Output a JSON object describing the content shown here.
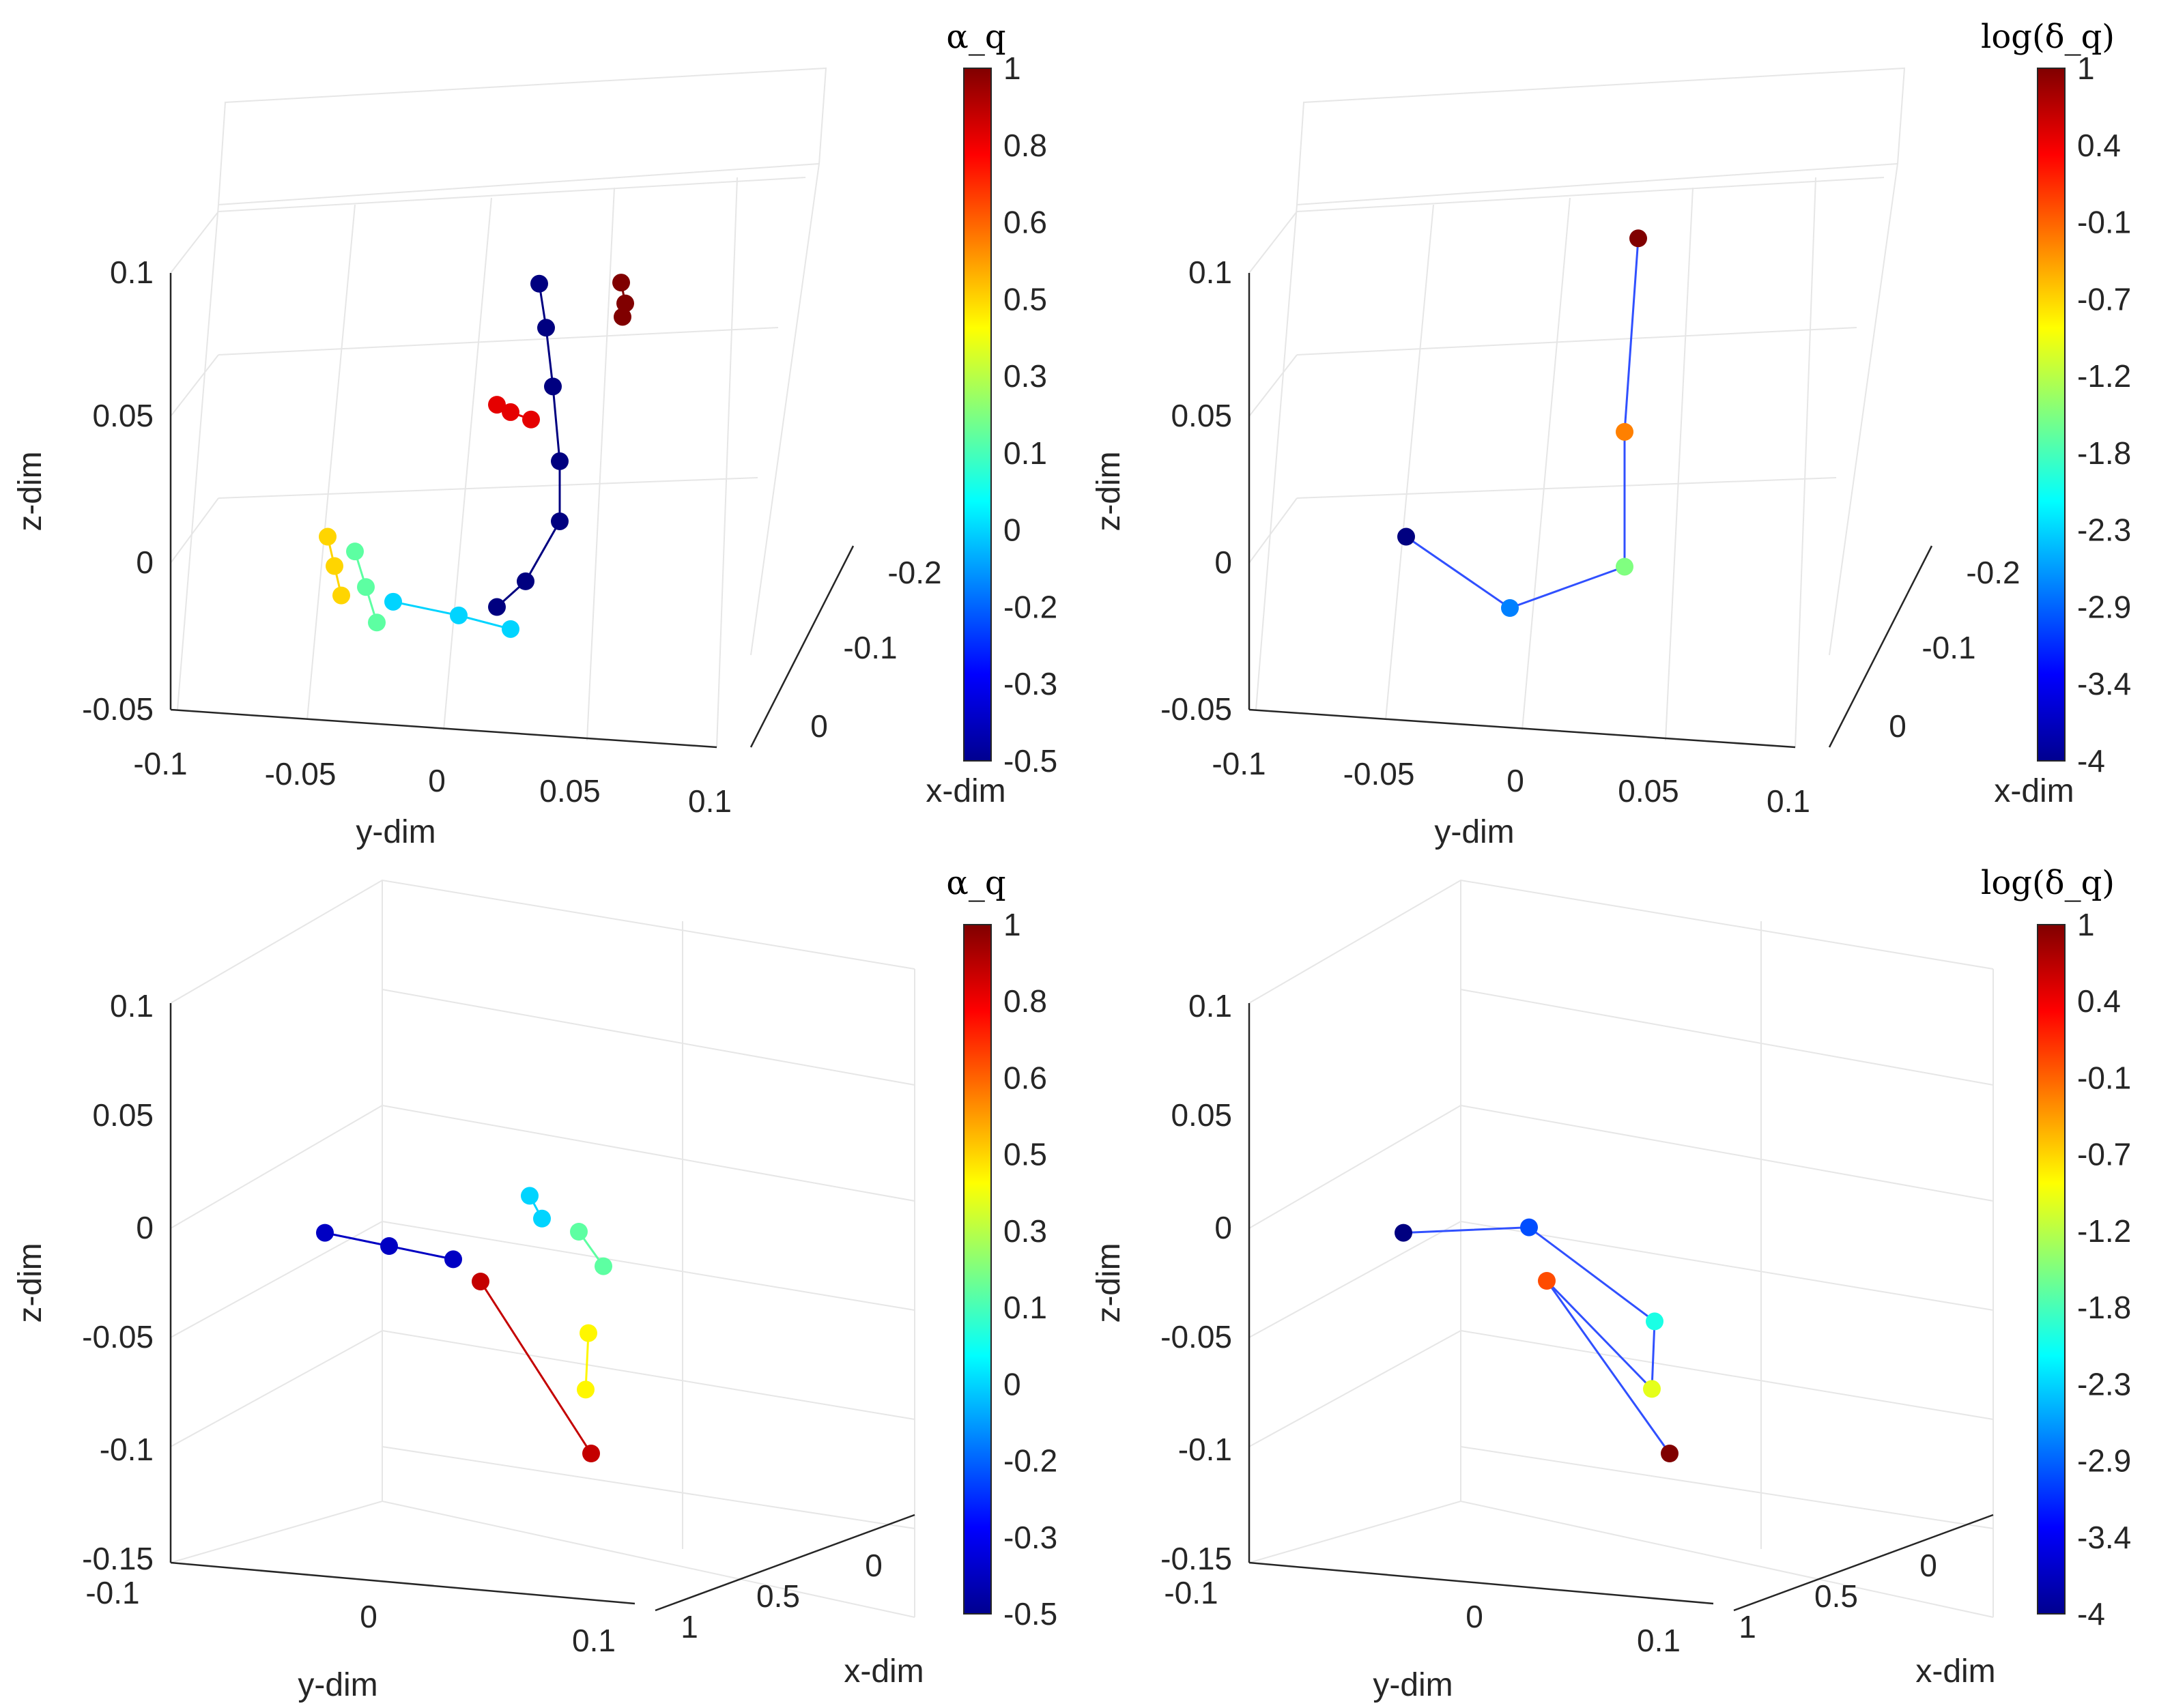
{
  "chart_data": [
    {
      "type": "scatter3d",
      "panel": "top-left",
      "xlabel": "x-dim",
      "ylabel": "y-dim",
      "zlabel": "z-dim",
      "yticks": [
        "-0.1",
        "-0.05",
        "0",
        "0.05",
        "0.1"
      ],
      "xticks": [
        "0",
        "-0.1",
        "-0.2"
      ],
      "zticks": [
        "-0.05",
        "0",
        "0.05",
        "0.1"
      ],
      "colorbar": {
        "title": "α_q",
        "ticks": [
          "1",
          "0.8",
          "0.6",
          "0.5",
          "0.3",
          "0.1",
          "0",
          "-0.2",
          "-0.3",
          "-0.5"
        ]
      },
      "series": [
        {
          "name": "blue-trajectory",
          "color_value": -0.5,
          "points": [
            [
              0.045,
              -0.15,
              0.13
            ],
            [
              0.05,
              -0.15,
              0.1
            ],
            [
              0.055,
              -0.15,
              0.06
            ],
            [
              0.07,
              -0.1,
              0.03
            ],
            [
              0.08,
              -0.05,
              0.01
            ],
            [
              0.065,
              0,
              -0.01
            ],
            [
              0.05,
              0.03,
              -0.015
            ]
          ]
        },
        {
          "name": "dark-red-arc",
          "color_value": 1.0,
          "points": [
            [
              0.095,
              -0.2,
              0.11
            ],
            [
              0.1,
              -0.19,
              0.1
            ],
            [
              0.1,
              -0.18,
              0.095
            ]
          ]
        },
        {
          "name": "red-arc",
          "color_value": 0.85,
          "points": [
            [
              0.02,
              -0.12,
              0.06
            ],
            [
              0.03,
              -0.12,
              0.055
            ],
            [
              0.045,
              -0.12,
              0.05
            ]
          ]
        },
        {
          "name": "cyan-rows",
          "color_value": 0.0,
          "points": [
            [
              -0.03,
              0.01,
              -0.02
            ],
            [
              0.02,
              0.02,
              -0.025
            ],
            [
              0.06,
              0.03,
              -0.03
            ]
          ]
        },
        {
          "name": "green-rows",
          "color_value": 0.2,
          "points": [
            [
              -0.06,
              0.0,
              0.01
            ],
            [
              -0.05,
              0.01,
              -0.01
            ],
            [
              -0.04,
              0.02,
              -0.03
            ]
          ]
        },
        {
          "name": "yellow-rows",
          "color_value": 0.5,
          "points": [
            [
              -0.08,
              0.0,
              0.02
            ],
            [
              -0.075,
              0.0,
              0.0
            ],
            [
              -0.07,
              0.0,
              -0.02
            ]
          ]
        }
      ]
    },
    {
      "type": "scatter3d",
      "panel": "top-right",
      "xlabel": "x-dim",
      "ylabel": "y-dim",
      "zlabel": "z-dim",
      "yticks": [
        "-0.1",
        "-0.05",
        "0",
        "0.05",
        "0.1"
      ],
      "xticks": [
        "0",
        "-0.1",
        "-0.2"
      ],
      "zticks": [
        "-0.05",
        "0",
        "0.05",
        "0.1"
      ],
      "colorbar": {
        "title": "log(δ_q)",
        "ticks": [
          "1",
          "0.4",
          "-0.1",
          "-0.7",
          "-1.2",
          "-1.8",
          "-2.3",
          "-2.9",
          "-3.4",
          "-4"
        ]
      },
      "series": [
        {
          "name": "trajectory-bundle",
          "color_range": [
            -4,
            1
          ],
          "points": [
            [
              -0.08,
              0.0,
              0.02
            ],
            [
              0.0,
              0.02,
              -0.02
            ],
            [
              0.08,
              0.0,
              0.0
            ],
            [
              0.06,
              -0.1,
              0.05
            ],
            [
              0.05,
              -0.2,
              0.14
            ]
          ]
        }
      ]
    },
    {
      "type": "scatter3d",
      "panel": "bottom-left",
      "xlabel": "x-dim",
      "ylabel": "y-dim",
      "zlabel": "z-dim",
      "yticks": [
        "-0.1",
        "0",
        "0.1"
      ],
      "xticks": [
        "1",
        "0.5",
        "0"
      ],
      "zticks": [
        "-0.15",
        "-0.1",
        "-0.05",
        "0",
        "0.05",
        "0.1"
      ],
      "colorbar": {
        "title": "α_q",
        "ticks": [
          "1",
          "0.8",
          "0.6",
          "0.5",
          "0.3",
          "0.1",
          "0",
          "-0.2",
          "-0.3",
          "-0.5"
        ]
      },
      "series": [
        {
          "name": "blue-arcs",
          "color_value": -0.4,
          "points": [
            [
              -0.08,
              0.2,
              0.07
            ],
            [
              -0.05,
              0.3,
              0.05
            ],
            [
              -0.02,
              0.4,
              0.03
            ]
          ]
        },
        {
          "name": "cyan-arcs",
          "color_value": 0.0,
          "points": [
            [
              0.02,
              0.5,
              0.08
            ],
            [
              0.03,
              0.5,
              0.06
            ]
          ]
        },
        {
          "name": "green-arcs",
          "color_value": 0.2,
          "points": [
            [
              0.06,
              0.5,
              0.05
            ],
            [
              0.08,
              0.5,
              0.02
            ]
          ]
        },
        {
          "name": "yellow-arcs",
          "color_value": 0.45,
          "points": [
            [
              0.09,
              0.4,
              -0.03
            ],
            [
              0.11,
              0.3,
              -0.07
            ]
          ]
        },
        {
          "name": "red-clusters",
          "color_value": 0.9,
          "points": [
            [
              -0.02,
              0.5,
              0.0
            ],
            [
              0.07,
              0.5,
              -0.15
            ]
          ]
        }
      ]
    },
    {
      "type": "scatter3d",
      "panel": "bottom-right",
      "xlabel": "x-dim",
      "ylabel": "y-dim",
      "zlabel": "z-dim",
      "yticks": [
        "-0.1",
        "0",
        "0.1"
      ],
      "xticks": [
        "1",
        "0.5",
        "0"
      ],
      "zticks": [
        "-0.15",
        "-0.1",
        "-0.05",
        "0",
        "0.05",
        "0.1"
      ],
      "colorbar": {
        "title": "log(δ_q)",
        "ticks": [
          "1",
          "0.4",
          "-0.1",
          "-0.7",
          "-1.2",
          "-1.8",
          "-2.3",
          "-2.9",
          "-3.4",
          "-4"
        ]
      },
      "series": [
        {
          "name": "trajectory-bundle",
          "color_range": [
            -4,
            1
          ],
          "points": [
            [
              -0.08,
              0.2,
              0.07
            ],
            [
              0.0,
              0.3,
              0.07
            ],
            [
              0.08,
              0.4,
              -0.02
            ],
            [
              0.1,
              0.3,
              -0.07
            ],
            [
              -0.03,
              0.5,
              0.0
            ],
            [
              0.07,
              0.5,
              -0.15
            ]
          ]
        }
      ]
    }
  ]
}
